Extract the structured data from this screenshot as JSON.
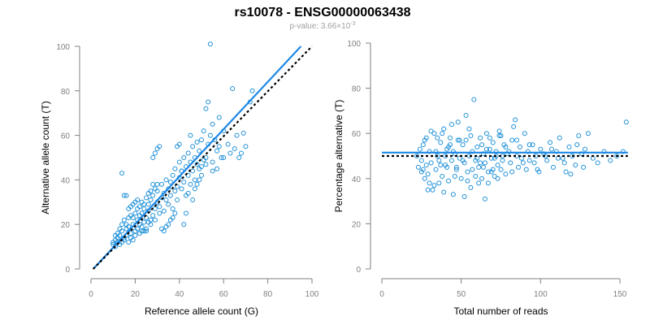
{
  "title": "rs10078 - ENSG00000063438",
  "subtitle_prefix": "p-value: 3.66×10",
  "subtitle_exponent": "-3",
  "colors": {
    "points": "#1e90d8",
    "fit": "#1e88e5",
    "reference": "#000000",
    "axis": "#808080"
  },
  "chart_data": [
    {
      "type": "scatter",
      "xlabel": "Reference allele count (G)",
      "ylabel": "Alternative allele count (T)",
      "xlim": [
        0,
        100
      ],
      "ylim": [
        0,
        100
      ],
      "xticks": [
        "0",
        "20",
        "40",
        "60",
        "80",
        "100"
      ],
      "yticks": [
        "0",
        "20",
        "40",
        "60",
        "80",
        "100"
      ],
      "grid": false,
      "fit_line": {
        "x": [
          1,
          95
        ],
        "y": [
          0,
          100
        ]
      },
      "reference_line": {
        "x": [
          1,
          100
        ],
        "y": [
          0,
          100
        ]
      },
      "points": [
        [
          10,
          11
        ],
        [
          10,
          12
        ],
        [
          11,
          10
        ],
        [
          11,
          13
        ],
        [
          12,
          12
        ],
        [
          12,
          14
        ],
        [
          13,
          11
        ],
        [
          13,
          15
        ],
        [
          14,
          12
        ],
        [
          14,
          17
        ],
        [
          15,
          13
        ],
        [
          15,
          14
        ],
        [
          16,
          15
        ],
        [
          16,
          18
        ],
        [
          17,
          12
        ],
        [
          17,
          19
        ],
        [
          18,
          14
        ],
        [
          18,
          16
        ],
        [
          19,
          13
        ],
        [
          19,
          20
        ],
        [
          20,
          15
        ],
        [
          20,
          17
        ],
        [
          21,
          22
        ],
        [
          21,
          18
        ],
        [
          22,
          24
        ],
        [
          22,
          16
        ],
        [
          23,
          25
        ],
        [
          23,
          19
        ],
        [
          24,
          21
        ],
        [
          24,
          27
        ],
        [
          25,
          23
        ],
        [
          25,
          18
        ],
        [
          26,
          26
        ],
        [
          26,
          29
        ],
        [
          27,
          20
        ],
        [
          27,
          31
        ],
        [
          28,
          24
        ],
        [
          28,
          33
        ],
        [
          29,
          27
        ],
        [
          29,
          22
        ],
        [
          30,
          30
        ],
        [
          30,
          35
        ],
        [
          31,
          28
        ],
        [
          31,
          25
        ],
        [
          32,
          32
        ],
        [
          32,
          38
        ],
        [
          33,
          26
        ],
        [
          33,
          34
        ],
        [
          34,
          40
        ],
        [
          34,
          31
        ],
        [
          35,
          36
        ],
        [
          35,
          29
        ],
        [
          36,
          39
        ],
        [
          36,
          33
        ],
        [
          37,
          42
        ],
        [
          37,
          27
        ],
        [
          38,
          35
        ],
        [
          38,
          45
        ],
        [
          39,
          37
        ],
        [
          39,
          31
        ],
        [
          40,
          41
        ],
        [
          40,
          48
        ],
        [
          41,
          36
        ],
        [
          41,
          44
        ],
        [
          42,
          39
        ],
        [
          42,
          50
        ],
        [
          43,
          46
        ],
        [
          43,
          33
        ],
        [
          44,
          42
        ],
        [
          44,
          52
        ],
        [
          45,
          48
        ],
        [
          45,
          38
        ],
        [
          46,
          55
        ],
        [
          46,
          44
        ],
        [
          47,
          50
        ],
        [
          47,
          40
        ],
        [
          48,
          47
        ],
        [
          48,
          57
        ],
        [
          49,
          45
        ],
        [
          49,
          53
        ],
        [
          50,
          58
        ],
        [
          50,
          42
        ],
        [
          51,
          62
        ],
        [
          51,
          49
        ],
        [
          52,
          47
        ],
        [
          52,
          72
        ],
        [
          53,
          75
        ],
        [
          53,
          56
        ],
        [
          54,
          101
        ],
        [
          54,
          60
        ],
        [
          55,
          48
        ],
        [
          55,
          65
        ],
        [
          56,
          58
        ],
        [
          57,
          53
        ],
        [
          58,
          68
        ],
        [
          58,
          55
        ],
        [
          59,
          50
        ],
        [
          60,
          62
        ],
        [
          62,
          56
        ],
        [
          64,
          81
        ],
        [
          66,
          60
        ],
        [
          67,
          50
        ],
        [
          68,
          52
        ],
        [
          70,
          55
        ],
        [
          72,
          75
        ],
        [
          73,
          80
        ],
        [
          11,
          15
        ],
        [
          12,
          16
        ],
        [
          13,
          18
        ],
        [
          14,
          20
        ],
        [
          15,
          22
        ],
        [
          16,
          20
        ],
        [
          17,
          23
        ],
        [
          18,
          24
        ],
        [
          19,
          23
        ],
        [
          20,
          25
        ],
        [
          21,
          27
        ],
        [
          22,
          28
        ],
        [
          23,
          30
        ],
        [
          24,
          29
        ],
        [
          25,
          32
        ],
        [
          26,
          34
        ],
        [
          27,
          35
        ],
        [
          28,
          38
        ],
        [
          29,
          36
        ],
        [
          30,
          38
        ],
        [
          14,
          43
        ],
        [
          15,
          33
        ],
        [
          16,
          33
        ],
        [
          17,
          27
        ],
        [
          18,
          28
        ],
        [
          19,
          29
        ],
        [
          20,
          30
        ],
        [
          21,
          31
        ],
        [
          22,
          20
        ],
        [
          23,
          17
        ],
        [
          24,
          17
        ],
        [
          25,
          17
        ],
        [
          26,
          21
        ],
        [
          27,
          22
        ],
        [
          28,
          50
        ],
        [
          29,
          52
        ],
        [
          30,
          54
        ],
        [
          31,
          55
        ],
        [
          32,
          18
        ],
        [
          33,
          17
        ],
        [
          34,
          19
        ],
        [
          35,
          20
        ],
        [
          36,
          22
        ],
        [
          37,
          23
        ],
        [
          38,
          25
        ],
        [
          39,
          55
        ],
        [
          40,
          56
        ],
        [
          41,
          44
        ],
        [
          42,
          20
        ],
        [
          43,
          25
        ],
        [
          44,
          34
        ],
        [
          45,
          60
        ],
        [
          46,
          31
        ],
        [
          47,
          36
        ],
        [
          48,
          38
        ],
        [
          49,
          40
        ],
        [
          50,
          46
        ],
        [
          52,
          50
        ],
        [
          55,
          44
        ],
        [
          57,
          45
        ],
        [
          60,
          50
        ],
        [
          63,
          52
        ],
        [
          65,
          54
        ],
        [
          69,
          61
        ]
      ]
    },
    {
      "type": "scatter",
      "xlabel": "Total number of reads",
      "ylabel": "Percentage alternative (T)",
      "xlim": [
        0,
        150
      ],
      "ylim": [
        0,
        100
      ],
      "xticks": [
        "0",
        "50",
        "100",
        "150"
      ],
      "yticks": [
        "0",
        "20",
        "40",
        "60",
        "80",
        "100"
      ],
      "grid": false,
      "fit_line": {
        "x": [
          0,
          155
        ],
        "y": [
          51.5,
          51.5
        ]
      },
      "reference_line": {
        "x": [
          0,
          155
        ],
        "y": [
          50,
          50
        ]
      },
      "points": [
        [
          22,
          50
        ],
        [
          23,
          45
        ],
        [
          24,
          53
        ],
        [
          25,
          48
        ],
        [
          26,
          55
        ],
        [
          27,
          40
        ],
        [
          28,
          58
        ],
        [
          29,
          42
        ],
        [
          30,
          52
        ],
        [
          31,
          47
        ],
        [
          32,
          35
        ],
        [
          33,
          60
        ],
        [
          34,
          44
        ],
        [
          35,
          50
        ],
        [
          36,
          38
        ],
        [
          37,
          56
        ],
        [
          38,
          41
        ],
        [
          39,
          62
        ],
        [
          40,
          46
        ],
        [
          41,
          53
        ],
        [
          42,
          39
        ],
        [
          43,
          58
        ],
        [
          44,
          48
        ],
        [
          45,
          33
        ],
        [
          46,
          51
        ],
        [
          47,
          44
        ],
        [
          48,
          65
        ],
        [
          49,
          49
        ],
        [
          50,
          40
        ],
        [
          51,
          55
        ],
        [
          52,
          47
        ],
        [
          53,
          57
        ],
        [
          54,
          43
        ],
        [
          55,
          50
        ],
        [
          56,
          36
        ],
        [
          57,
          52
        ],
        [
          58,
          75
        ],
        [
          59,
          48
        ],
        [
          60,
          54
        ],
        [
          61,
          45
        ],
        [
          62,
          58
        ],
        [
          63,
          40
        ],
        [
          64,
          51
        ],
        [
          65,
          47
        ],
        [
          66,
          60
        ],
        [
          67,
          43
        ],
        [
          68,
          53
        ],
        [
          69,
          49
        ],
        [
          70,
          56
        ],
        [
          71,
          41
        ],
        [
          72,
          52
        ],
        [
          73,
          46
        ],
        [
          74,
          59
        ],
        [
          75,
          44
        ],
        [
          76,
          50
        ],
        [
          77,
          55
        ],
        [
          78,
          42
        ],
        [
          80,
          52
        ],
        [
          81,
          47
        ],
        [
          82,
          57
        ],
        [
          83,
          63
        ],
        [
          84,
          66
        ],
        [
          85,
          50
        ],
        [
          86,
          45
        ],
        [
          87,
          54
        ],
        [
          88,
          49
        ],
        [
          90,
          60
        ],
        [
          91,
          44
        ],
        [
          92,
          52
        ],
        [
          93,
          48
        ],
        [
          95,
          55
        ],
        [
          96,
          47
        ],
        [
          97,
          50
        ],
        [
          99,
          43
        ],
        [
          100,
          53
        ],
        [
          102,
          51
        ],
        [
          104,
          48
        ],
        [
          106,
          56
        ],
        [
          108,
          45
        ],
        [
          110,
          52
        ],
        [
          112,
          58
        ],
        [
          114,
          49
        ],
        [
          116,
          43
        ],
        [
          118,
          54
        ],
        [
          120,
          50
        ],
        [
          122,
          46
        ],
        [
          124,
          59
        ],
        [
          126,
          51
        ],
        [
          128,
          53
        ],
        [
          130,
          60
        ],
        [
          133,
          49
        ],
        [
          136,
          47
        ],
        [
          140,
          52
        ],
        [
          144,
          48
        ],
        [
          148,
          50
        ],
        [
          152,
          52
        ],
        [
          154,
          65
        ],
        [
          25,
          43
        ],
        [
          28,
          46
        ],
        [
          30,
          38
        ],
        [
          33,
          37
        ],
        [
          35,
          58
        ],
        [
          37,
          46
        ],
        [
          40,
          50
        ],
        [
          43,
          55
        ],
        [
          46,
          41
        ],
        [
          49,
          57
        ],
        [
          52,
          32
        ],
        [
          55,
          62
        ],
        [
          60,
          49
        ],
        [
          64,
          45
        ],
        [
          68,
          58
        ],
        [
          72,
          50
        ],
        [
          76,
          48
        ],
        [
          34,
          52
        ],
        [
          36,
          48
        ],
        [
          38,
          60
        ],
        [
          42,
          54
        ],
        [
          44,
          64
        ],
        [
          47,
          45
        ],
        [
          53,
          68
        ],
        [
          56,
          59
        ],
        [
          59,
          41
        ],
        [
          62,
          47
        ],
        [
          66,
          53
        ],
        [
          70,
          44
        ],
        [
          74,
          61
        ],
        [
          79,
          51
        ],
        [
          26,
          44
        ],
        [
          27,
          57
        ],
        [
          29,
          35
        ],
        [
          31,
          61
        ],
        [
          39,
          34
        ],
        [
          41,
          45
        ],
        [
          45,
          52
        ],
        [
          48,
          57
        ],
        [
          51,
          48
        ],
        [
          54,
          39
        ],
        [
          57,
          44
        ],
        [
          61,
          38
        ],
        [
          63,
          55
        ],
        [
          65,
          31
        ],
        [
          67,
          38
        ],
        [
          69,
          43
        ],
        [
          71,
          49
        ],
        [
          73,
          40
        ],
        [
          75,
          59
        ],
        [
          78,
          54
        ],
        [
          82,
          43
        ],
        [
          85,
          57
        ],
        [
          89,
          47
        ],
        [
          93,
          55
        ],
        [
          98,
          44
        ],
        [
          103,
          50
        ],
        [
          107,
          53
        ],
        [
          111,
          49
        ],
        [
          115,
          47
        ],
        [
          119,
          42
        ],
        [
          123,
          55
        ],
        [
          127,
          45
        ]
      ]
    }
  ]
}
